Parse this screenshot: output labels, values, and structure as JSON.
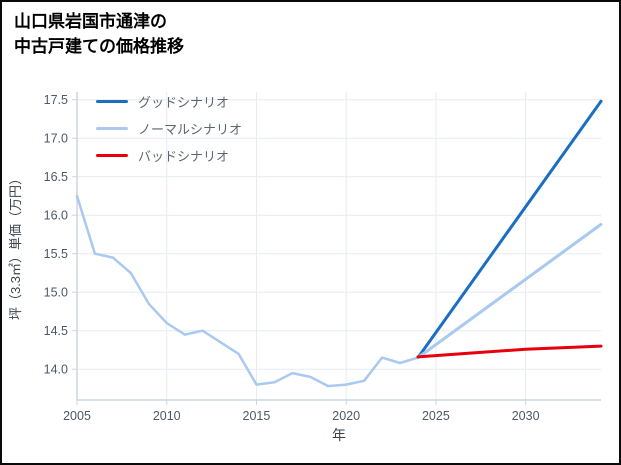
{
  "title": {
    "line1": "山口県岩国市通津の",
    "line2": "中古戸建ての価格推移"
  },
  "chart_data": {
    "type": "line",
    "title": "山口県岩国市通津の中古戸建ての価格推移",
    "xlabel": "年",
    "ylabel": "坪（3.3㎡）単価（万円）",
    "xlim": [
      2005,
      2034.2
    ],
    "ylim": [
      13.6,
      17.6
    ],
    "x_ticks": [
      2005,
      2010,
      2015,
      2020,
      2025,
      2030
    ],
    "y_ticks": [
      14,
      14.5,
      15,
      15.5,
      16,
      16.5,
      17,
      17.5
    ],
    "grid": true,
    "legend_position": "top-left",
    "colors": {
      "grid": "#e6ecf3",
      "spine": "#ccd5de",
      "tick_label": "#4d5966",
      "axis_label": "#39434d",
      "legend_text": "#5c6670"
    },
    "series": [
      {
        "key": "history",
        "name": "",
        "show_in_legend": false,
        "color": "#a9c9f0",
        "line_width": 2.5,
        "x": [
          2005,
          2006,
          2007,
          2008,
          2009,
          2010,
          2011,
          2012,
          2013,
          2014,
          2015,
          2016,
          2017,
          2018,
          2019,
          2020,
          2021,
          2022,
          2023,
          2024
        ],
        "values": [
          16.25,
          15.5,
          15.45,
          15.25,
          14.85,
          14.6,
          14.45,
          14.5,
          14.35,
          14.2,
          13.8,
          13.83,
          13.95,
          13.9,
          13.78,
          13.8,
          13.85,
          14.15,
          14.08,
          14.15
        ]
      },
      {
        "key": "good-scenario",
        "name": "グッドシナリオ",
        "show_in_legend": true,
        "color": "#1b6ec2",
        "line_width": 3,
        "x": [
          2024,
          2034.2
        ],
        "values": [
          14.15,
          17.48
        ]
      },
      {
        "key": "normal-scenario",
        "name": "ノーマルシナリオ",
        "show_in_legend": true,
        "color": "#a9c9f0",
        "line_width": 3,
        "x": [
          2024,
          2034.2
        ],
        "values": [
          14.15,
          15.88
        ]
      },
      {
        "key": "bad-scenario",
        "name": "バッドシナリオ",
        "show_in_legend": true,
        "color": "#e8000d",
        "line_width": 3,
        "x": [
          2024,
          2027,
          2030,
          2034.2
        ],
        "values": [
          14.16,
          14.21,
          14.26,
          14.3
        ]
      }
    ]
  }
}
